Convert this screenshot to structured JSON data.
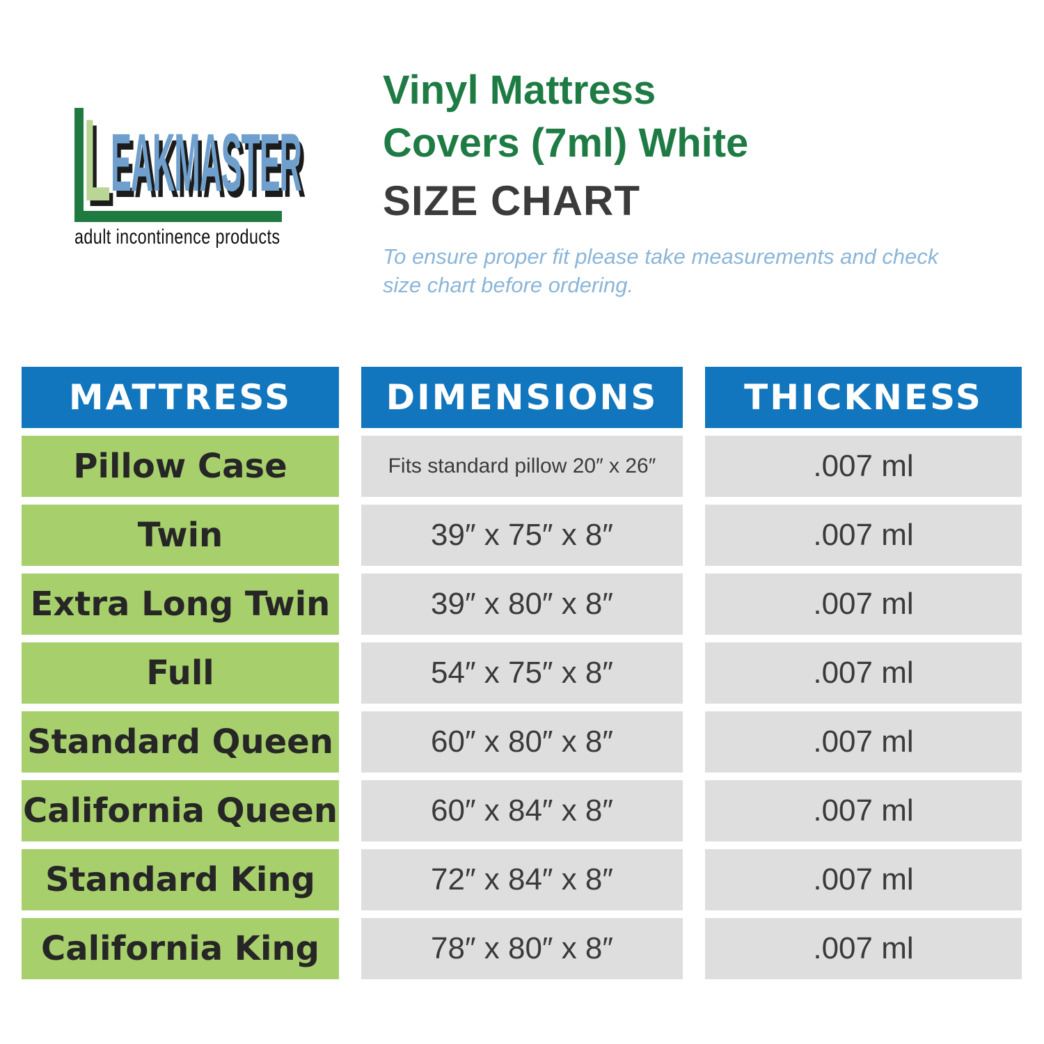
{
  "logo": {
    "letter_l": "L",
    "wordmark_rest": "EAKMASTER",
    "tagline": "adult incontinence products",
    "colors": {
      "angle_green": "#1e7a40",
      "letter_light_green": "#b9d695",
      "wordmark_blue": "#6fa0cd",
      "shadow": "#1b1b1b"
    }
  },
  "header": {
    "title_line1": "Vinyl Mattress",
    "title_line2": "Covers (7ml) White",
    "size_chart": "SIZE CHART",
    "note_line1": "To ensure proper fit please take measurements and check",
    "note_line2": "size chart before ordering.",
    "colors": {
      "title_green": "#1e7b44",
      "size_chart_dark": "#3b3b3b",
      "note_blue": "#8ab5d8"
    }
  },
  "table": {
    "columns": [
      "MATTRESS",
      "DIMENSIONS",
      "THICKNESS"
    ],
    "rows": [
      {
        "mattress": "Pillow Case",
        "dimensions": "Fits standard pillow 20″ x 26″",
        "thickness": ".007 ml"
      },
      {
        "mattress": "Twin",
        "dimensions": "39″ x 75″ x 8″",
        "thickness": ".007 ml"
      },
      {
        "mattress": "Extra Long Twin",
        "dimensions": "39″ x 80″ x 8″",
        "thickness": ".007 ml"
      },
      {
        "mattress": "Full",
        "dimensions": "54″ x 75″ x 8″",
        "thickness": ".007 ml"
      },
      {
        "mattress": "Standard Queen",
        "dimensions": "60″ x 80″ x 8″",
        "thickness": ".007 ml"
      },
      {
        "mattress": "California Queen",
        "dimensions": "60″ x 84″ x 8″",
        "thickness": ".007 ml"
      },
      {
        "mattress": "Standard King",
        "dimensions": "72″ x 84″ x 8″",
        "thickness": ".007 ml"
      },
      {
        "mattress": "California King",
        "dimensions": "78″ x 80″ x 8″",
        "thickness": ".007 ml"
      }
    ],
    "colors": {
      "header_bg": "#1176bd",
      "header_text": "#ffffff",
      "mattress_bg": "#a7cf6c",
      "value_bg": "#dedede",
      "text": "#3a3a3a"
    }
  },
  "chart_data": {
    "type": "table",
    "title": "Vinyl Mattress Covers (7ml) White — SIZE CHART",
    "columns": [
      "MATTRESS",
      "DIMENSIONS",
      "THICKNESS"
    ],
    "rows": [
      [
        "Pillow Case",
        "Fits standard pillow 20″ x 26″",
        ".007 ml"
      ],
      [
        "Twin",
        "39″ x 75″ x 8″",
        ".007 ml"
      ],
      [
        "Extra Long Twin",
        "39″ x 80″ x 8″",
        ".007 ml"
      ],
      [
        "Full",
        "54″ x 75″ x 8″",
        ".007 ml"
      ],
      [
        "Standard Queen",
        "60″ x 80″ x 8″",
        ".007 ml"
      ],
      [
        "California Queen",
        "60″ x 84″ x 8″",
        ".007 ml"
      ],
      [
        "Standard King",
        "72″ x 84″ x 8″",
        ".007 ml"
      ],
      [
        "California King",
        "78″ x 80″ x 8″",
        ".007 ml"
      ]
    ]
  }
}
